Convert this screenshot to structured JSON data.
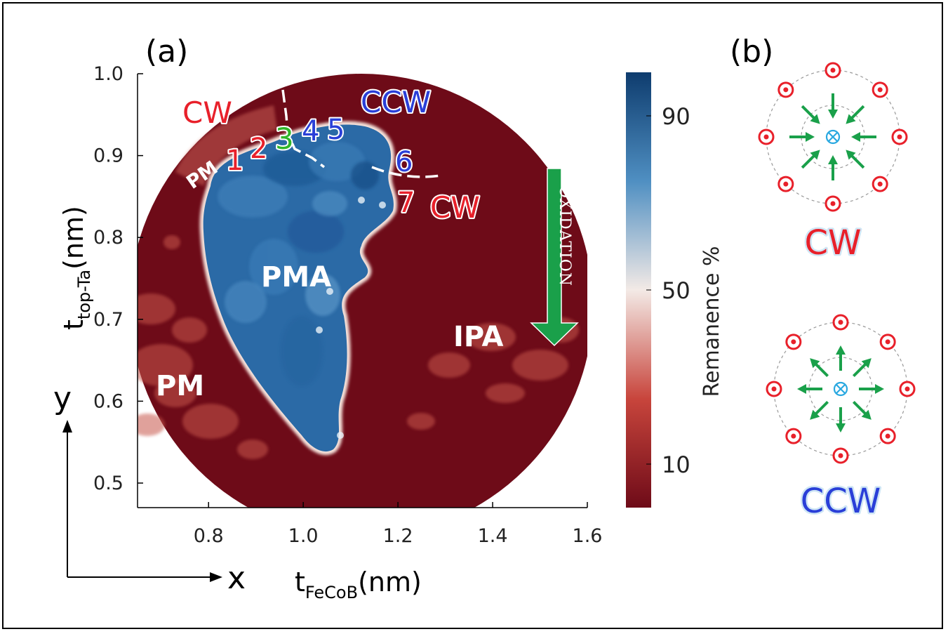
{
  "panel_a_label": "(a)",
  "panel_b_label": "(b)",
  "chart_data": {
    "type": "heatmap",
    "xlabel": "t",
    "xlabel_sub": "FeCoB",
    "xlabel_unit": "(nm)",
    "ylabel": "t",
    "ylabel_sub": "top-Ta",
    "ylabel_unit": "(nm)",
    "xlim": [
      0.65,
      1.6
    ],
    "ylim": [
      0.47,
      1.0
    ],
    "xticks": [
      0.8,
      1.0,
      1.2,
      1.4,
      1.6
    ],
    "xtick_labels": [
      "0.8",
      "1.0",
      "1.2",
      "1.4",
      "1.6"
    ],
    "yticks": [
      0.5,
      0.6,
      0.7,
      0.8,
      0.9,
      1.0
    ],
    "ytick_labels": [
      "0.5",
      "0.6",
      "0.7",
      "0.8",
      "0.9",
      "1.0"
    ],
    "colorbar": {
      "label": "Remanence %",
      "range": [
        0,
        100
      ],
      "ticks": [
        10,
        50,
        90
      ],
      "tick_labels": [
        "10",
        "50",
        "90"
      ],
      "colors": [
        "#6e0b18",
        "#c8453c",
        "#f3eae6",
        "#4f8fc2",
        "#0e3c6e"
      ]
    },
    "regions": [
      {
        "label": "PMA",
        "remanence": 95,
        "x": 1.03,
        "y": 0.78
      },
      {
        "label": "IPA",
        "remanence": 5,
        "x": 1.39,
        "y": 0.69
      },
      {
        "label": "PM",
        "remanence": 20,
        "x": 0.74,
        "y": 0.61
      },
      {
        "label": "PM",
        "remanence": 30,
        "x": 0.8,
        "y": 0.9
      }
    ],
    "samples": [
      {
        "label": "1",
        "x": 0.87,
        "y": 0.89,
        "color": "#e8202a"
      },
      {
        "label": "2",
        "x": 0.94,
        "y": 0.905,
        "color": "#e8202a"
      },
      {
        "label": "3",
        "x": 0.98,
        "y": 0.92,
        "color": "#2fb52a"
      },
      {
        "label": "4",
        "x": 1.04,
        "y": 0.93,
        "color": "#2a3fd8"
      },
      {
        "label": "5",
        "x": 1.1,
        "y": 0.93,
        "color": "#2a3fd8"
      },
      {
        "label": "6",
        "x": 1.21,
        "y": 0.895,
        "color": "#2a3fd8"
      },
      {
        "label": "7",
        "x": 1.22,
        "y": 0.845,
        "color": "#e8202a"
      }
    ],
    "annotations": [
      {
        "text": "CW",
        "x": 0.77,
        "y": 0.955,
        "color": "#e8202a"
      },
      {
        "text": "CCW",
        "x": 1.14,
        "y": 0.965,
        "color": "#2a3fd8"
      },
      {
        "text": "CW",
        "x": 1.36,
        "y": 0.835,
        "color": "#e8202a"
      }
    ],
    "oxidation_label": "Oxidation",
    "axis_x_label": "x",
    "axis_y_label": "y"
  },
  "panel_b": {
    "cw_label": "CW",
    "ccw_label": "CCW",
    "cw_color": "#e8202a",
    "ccw_color": "#2a3fd8",
    "arrow_color": "#1aa04a",
    "dot_color": "#e8202a",
    "center_color": "#29a8e0"
  }
}
